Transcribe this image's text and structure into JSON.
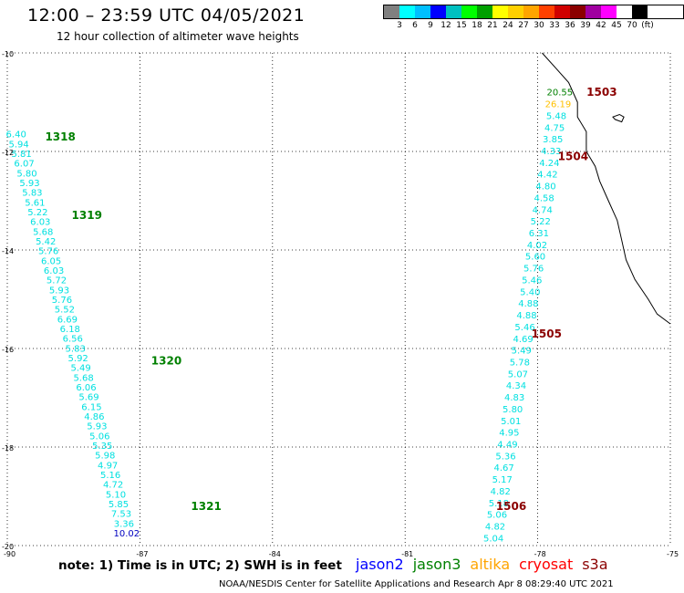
{
  "header": {
    "title": "12:00 – 23:59 UTC 04/05/2021",
    "subtitle": "12 hour collection of altimeter wave heights"
  },
  "legend": {
    "colors": [
      "#808080",
      "#00ffff",
      "#00bfff",
      "#0000ff",
      "#00c0c0",
      "#00ff00",
      "#00a000",
      "#ffff00",
      "#ffd000",
      "#ffa500",
      "#ff4000",
      "#d00000",
      "#8b0000",
      "#a000a0",
      "#ff00ff",
      "#ffffff",
      "#000000"
    ],
    "labels": [
      "3",
      "6",
      "9",
      "12",
      "15",
      "18",
      "21",
      "24",
      "27",
      "30",
      "33",
      "36",
      "39",
      "42",
      "45",
      "70",
      "(ft)"
    ]
  },
  "axes": {
    "lat_labels": [
      "-10",
      "-12",
      "-14",
      "-16",
      "-18",
      "-20"
    ],
    "lon_labels": [
      "-90",
      "-87",
      "-84",
      "-81",
      "-78",
      "-75"
    ]
  },
  "map_data": {
    "lat_range": [
      -20,
      -10
    ],
    "lon_range": [
      -90,
      -75
    ],
    "pass_labels": [
      {
        "text": "1318",
        "lat": -11.7,
        "lon": -88.8,
        "color": "#008000"
      },
      {
        "text": "1319",
        "lat": -13.3,
        "lon": -88.2,
        "color": "#008000"
      },
      {
        "text": "1320",
        "lat": -16.25,
        "lon": -86.4,
        "color": "#008000"
      },
      {
        "text": "1321",
        "lat": -19.2,
        "lon": -85.5,
        "color": "#008000"
      },
      {
        "text": "1503",
        "lat": -10.8,
        "lon": -76.55,
        "color": "#8b0000"
      },
      {
        "text": "1504",
        "lat": -12.1,
        "lon": -77.2,
        "color": "#8b0000"
      },
      {
        "text": "1505",
        "lat": -15.7,
        "lon": -77.8,
        "color": "#8b0000"
      },
      {
        "text": "1506",
        "lat": -19.2,
        "lon": -78.6,
        "color": "#8b0000"
      }
    ],
    "track_west": {
      "start": [
        -11.65,
        -89.8
      ],
      "end": [
        -19.75,
        -87.3
      ],
      "values": [
        "6.40",
        "5.94",
        "5.81",
        "6.07",
        "5.80",
        "5.93",
        "5.83",
        "5.61",
        "5.22",
        "6.03",
        "5.68",
        "5.42",
        "5.76",
        "6.05",
        "6.03",
        "5.72",
        "5.93",
        "5.76",
        "5.52",
        "6.69",
        "6.18",
        "6.56",
        "5.83",
        "5.92",
        "5.49",
        "5.68",
        "6.06",
        "5.69",
        "6.15",
        "4.86",
        "5.93",
        "5.06",
        "5.35",
        "5.98",
        "4.97",
        "5.16",
        "4.72",
        "5.10",
        "5.85",
        "7.53",
        "3.36",
        "10.02"
      ],
      "colors": [
        "#00e0e0",
        "#00e0e0",
        "#00e0e0",
        "#00e0e0",
        "#00e0e0",
        "#00e0e0",
        "#00e0e0",
        "#00e0e0",
        "#00e0e0",
        "#00e0e0",
        "#00e0e0",
        "#00e0e0",
        "#00e0e0",
        "#00e0e0",
        "#00e0e0",
        "#00e0e0",
        "#00e0e0",
        "#00e0e0",
        "#00e0e0",
        "#00e0e0",
        "#00e0e0",
        "#00e0e0",
        "#00e0e0",
        "#00e0e0",
        "#00e0e0",
        "#00e0e0",
        "#00e0e0",
        "#00e0e0",
        "#00e0e0",
        "#00e0e0",
        "#00e0e0",
        "#00e0e0",
        "#00e0e0",
        "#00e0e0",
        "#00e0e0",
        "#00e0e0",
        "#00e0e0",
        "#00e0e0",
        "#00e0e0",
        "#00e0e0",
        "#00e0e0",
        "#0000c0"
      ]
    },
    "track_east": {
      "start": [
        -10.8,
        -77.5
      ],
      "end": [
        -19.85,
        -79.0
      ],
      "values": [
        "20.55",
        "26.19",
        "5.48",
        "4.75",
        "3.85",
        "4.33",
        "4.24",
        "4.42",
        "4.80",
        "4.58",
        "4.74",
        "5.22",
        "6.31",
        "4.02",
        "5.60",
        "5.76",
        "5.46",
        "5.40",
        "4.88",
        "4.88",
        "5.46",
        "4.69",
        "5.49",
        "5.78",
        "5.07",
        "4.34",
        "4.83",
        "5.80",
        "5.01",
        "4.95",
        "4.49",
        "5.36",
        "4.67",
        "5.17",
        "4.82",
        "5.18",
        "5.06",
        "4.82",
        "5.04"
      ],
      "colors": [
        "#008000",
        "#ffc000",
        "#00e0e0",
        "#00e0e0",
        "#00e0e0",
        "#00e0e0",
        "#00e0e0",
        "#00e0e0",
        "#00e0e0",
        "#00e0e0",
        "#00e0e0",
        "#00e0e0",
        "#00e0e0",
        "#00e0e0",
        "#00e0e0",
        "#00e0e0",
        "#00e0e0",
        "#00e0e0",
        "#00e0e0",
        "#00e0e0",
        "#00e0e0",
        "#00e0e0",
        "#00e0e0",
        "#00e0e0",
        "#00e0e0",
        "#00e0e0",
        "#00e0e0",
        "#00e0e0",
        "#00e0e0",
        "#00e0e0",
        "#00e0e0",
        "#00e0e0",
        "#00e0e0",
        "#00e0e0",
        "#00e0e0",
        "#00e0e0",
        "#00e0e0",
        "#00e0e0",
        "#00e0e0"
      ]
    },
    "coastline": [
      [
        -10.0,
        -77.9
      ],
      [
        -10.3,
        -77.6
      ],
      [
        -10.6,
        -77.3
      ],
      [
        -11.0,
        -77.1
      ],
      [
        -11.3,
        -77.1
      ],
      [
        -11.6,
        -76.9
      ],
      [
        -12.0,
        -76.9
      ],
      [
        -12.3,
        -76.7
      ],
      [
        -12.6,
        -76.6
      ],
      [
        -13.0,
        -76.4
      ],
      [
        -13.4,
        -76.2
      ],
      [
        -13.8,
        -76.1
      ],
      [
        -14.2,
        -76.0
      ],
      [
        -14.6,
        -75.8
      ],
      [
        -15.0,
        -75.5
      ],
      [
        -15.3,
        -75.3
      ],
      [
        -15.5,
        -75.0
      ]
    ],
    "island": [
      [
        -11.3,
        -76.3
      ],
      [
        -11.25,
        -76.15
      ],
      [
        -11.3,
        -76.05
      ],
      [
        -11.4,
        -76.1
      ],
      [
        -11.35,
        -76.25
      ]
    ]
  },
  "satellites": [
    {
      "name": "jason2",
      "color": "#0000ff"
    },
    {
      "name": "jason3",
      "color": "#008000"
    },
    {
      "name": "altika",
      "color": "#ffa500"
    },
    {
      "name": "cryosat",
      "color": "#ff0000"
    },
    {
      "name": "s3a",
      "color": "#8b0000"
    }
  ],
  "note": "note: 1) Time is in UTC; 2) SWH is in feet",
  "footer": "NOAA/NESDIS Center for Satellite Applications and Research   Apr  8 08:29:40 UTC 2021"
}
